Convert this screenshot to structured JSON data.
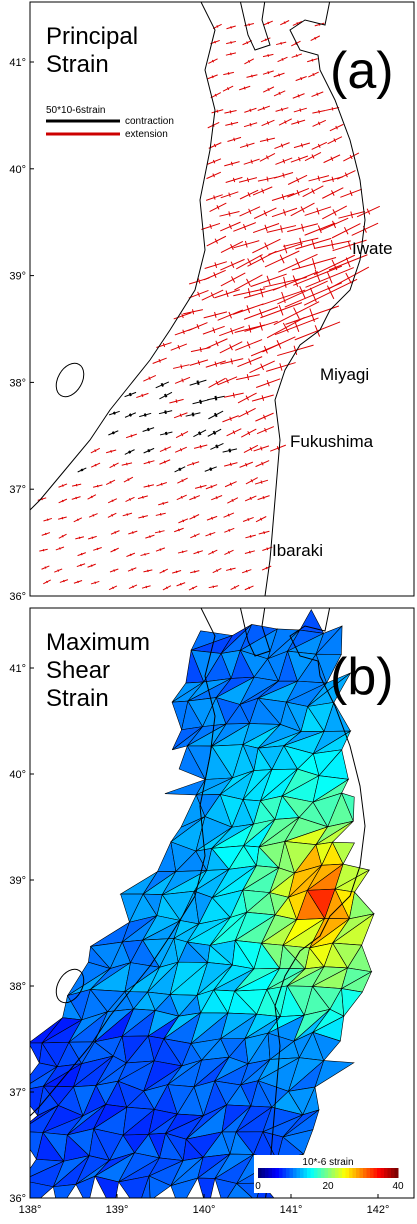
{
  "panel_a": {
    "title_lines": [
      "Principal",
      "Strain"
    ],
    "label": "(a)",
    "legend": {
      "scale": "50*10-6strain",
      "contraction": "contraction",
      "extension": "extension"
    },
    "places": [
      "Iwate",
      "Miyagi",
      "Fukushima",
      "Ibaraki"
    ]
  },
  "panel_b": {
    "title_lines": [
      "Maximum",
      "Shear",
      "Strain"
    ],
    "label": "(b)"
  },
  "lat_ticks": [
    {
      "value": 41,
      "label": "41°"
    },
    {
      "value": 40,
      "label": "40°"
    },
    {
      "value": 39,
      "label": "39°"
    },
    {
      "value": 38,
      "label": "38°"
    },
    {
      "value": 37,
      "label": "37°"
    },
    {
      "value": 36,
      "label": "36°"
    }
  ],
  "lon_ticks": [
    {
      "value": 138,
      "label": "138°"
    },
    {
      "value": 139,
      "label": "139°"
    },
    {
      "value": 140,
      "label": "140°"
    },
    {
      "value": 141,
      "label": "141°"
    },
    {
      "value": 142,
      "label": "142°"
    }
  ],
  "colorbar": {
    "label": "10*-6 strain",
    "range": [
      0,
      40
    ],
    "ticks": [
      0,
      20,
      40
    ]
  }
}
